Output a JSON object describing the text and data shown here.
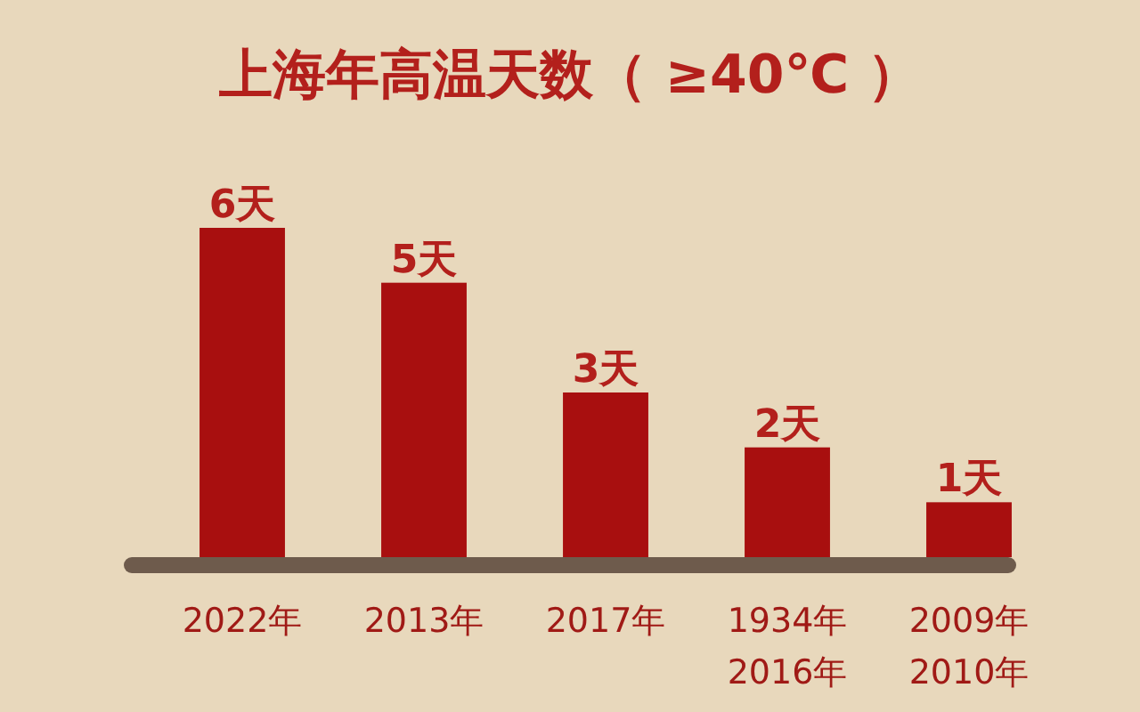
{
  "chart_data": {
    "type": "bar",
    "title": "上海年高温天数（ ≥40℃ ）",
    "categories": [
      "2022年",
      "2013年",
      "2017年",
      "1934年\n2016年",
      "2009年\n2010年"
    ],
    "values": [
      6,
      5,
      3,
      2,
      1
    ],
    "value_labels": [
      "6天",
      "5天",
      "3天",
      "2天",
      "1天"
    ],
    "color": "#a80f0f"
  }
}
